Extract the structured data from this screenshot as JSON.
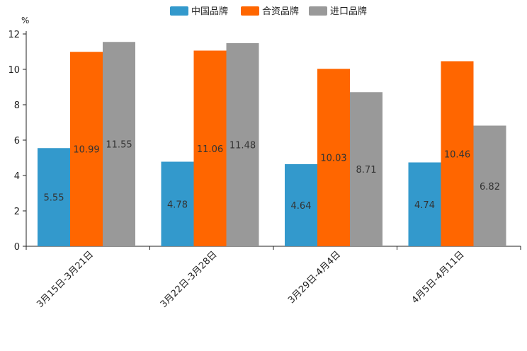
{
  "chart_data": {
    "type": "bar",
    "title": "",
    "xlabel": "",
    "ylabel": "",
    "unit": "%",
    "ylim": [
      0,
      12
    ],
    "yticks": [
      0,
      2,
      4,
      6,
      8,
      10,
      12
    ],
    "grid": false,
    "legend_position": "top-center",
    "categories": [
      "3月15日-3月21日",
      "3月22日-3月28日",
      "3月29日-4月4日",
      "4月5日-4月11日"
    ],
    "series": [
      {
        "name": "中国品牌",
        "color": "#3399cc",
        "values": [
          5.55,
          4.78,
          4.64,
          4.74
        ]
      },
      {
        "name": "合资品牌",
        "color": "#ff6600",
        "values": [
          10.99,
          11.06,
          10.03,
          10.46
        ]
      },
      {
        "name": "进口品牌",
        "color": "#999999",
        "values": [
          11.55,
          11.48,
          8.71,
          6.82
        ]
      }
    ]
  }
}
